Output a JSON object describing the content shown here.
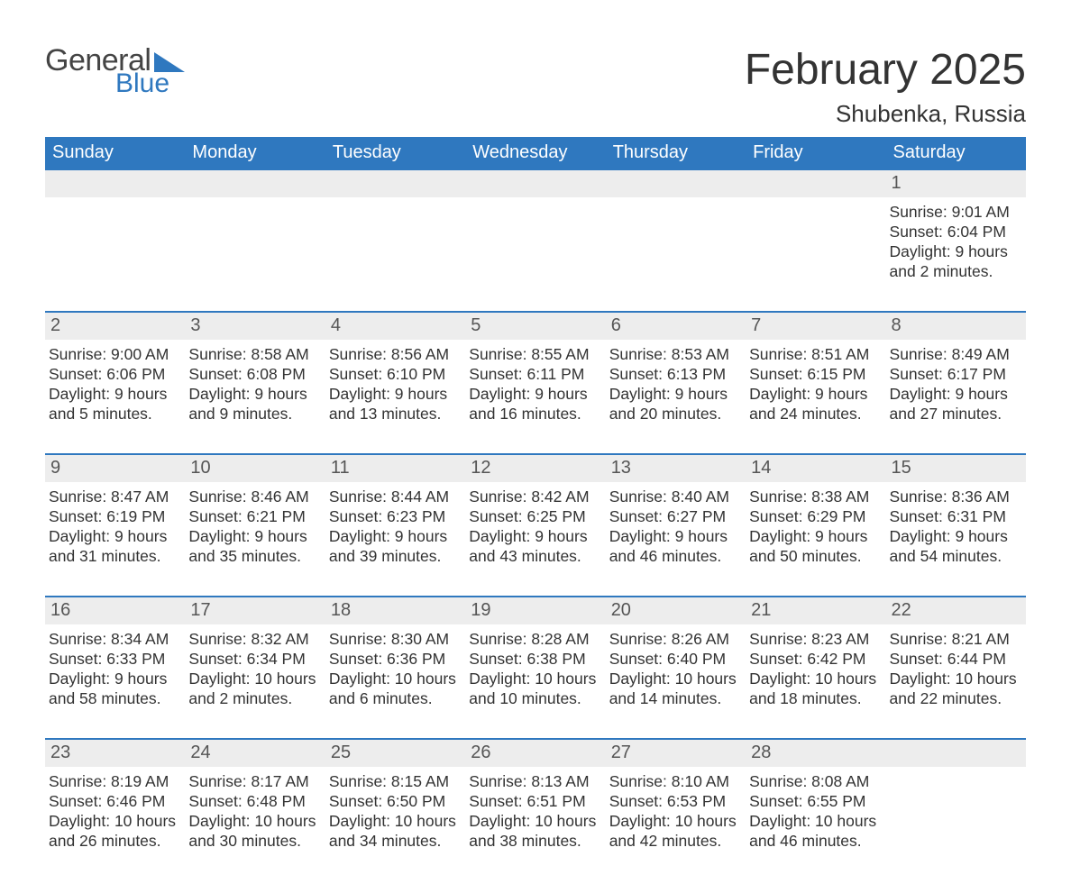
{
  "logo": {
    "text_general": "General",
    "text_blue": "Blue",
    "triangle_color": "#2f78bf"
  },
  "title": "February 2025",
  "location": "Shubenka, Russia",
  "colors": {
    "header_bg": "#2f78bf",
    "header_text": "#ffffff",
    "daynum_bg": "#ededed",
    "daynum_text": "#555555",
    "body_text": "#333333",
    "rule": "#2f78bf",
    "page_bg": "#ffffff"
  },
  "fonts": {
    "month_title_pt": 48,
    "location_pt": 26,
    "weekday_pt": 20,
    "daynum_pt": 20,
    "body_pt": 17.5
  },
  "weekdays": [
    "Sunday",
    "Monday",
    "Tuesday",
    "Wednesday",
    "Thursday",
    "Friday",
    "Saturday"
  ],
  "weeks": [
    [
      {
        "n": "",
        "sunrise": "",
        "sunset": "",
        "daylight": ""
      },
      {
        "n": "",
        "sunrise": "",
        "sunset": "",
        "daylight": ""
      },
      {
        "n": "",
        "sunrise": "",
        "sunset": "",
        "daylight": ""
      },
      {
        "n": "",
        "sunrise": "",
        "sunset": "",
        "daylight": ""
      },
      {
        "n": "",
        "sunrise": "",
        "sunset": "",
        "daylight": ""
      },
      {
        "n": "",
        "sunrise": "",
        "sunset": "",
        "daylight": ""
      },
      {
        "n": "1",
        "sunrise": "Sunrise: 9:01 AM",
        "sunset": "Sunset: 6:04 PM",
        "daylight": "Daylight: 9 hours and 2 minutes."
      }
    ],
    [
      {
        "n": "2",
        "sunrise": "Sunrise: 9:00 AM",
        "sunset": "Sunset: 6:06 PM",
        "daylight": "Daylight: 9 hours and 5 minutes."
      },
      {
        "n": "3",
        "sunrise": "Sunrise: 8:58 AM",
        "sunset": "Sunset: 6:08 PM",
        "daylight": "Daylight: 9 hours and 9 minutes."
      },
      {
        "n": "4",
        "sunrise": "Sunrise: 8:56 AM",
        "sunset": "Sunset: 6:10 PM",
        "daylight": "Daylight: 9 hours and 13 minutes."
      },
      {
        "n": "5",
        "sunrise": "Sunrise: 8:55 AM",
        "sunset": "Sunset: 6:11 PM",
        "daylight": "Daylight: 9 hours and 16 minutes."
      },
      {
        "n": "6",
        "sunrise": "Sunrise: 8:53 AM",
        "sunset": "Sunset: 6:13 PM",
        "daylight": "Daylight: 9 hours and 20 minutes."
      },
      {
        "n": "7",
        "sunrise": "Sunrise: 8:51 AM",
        "sunset": "Sunset: 6:15 PM",
        "daylight": "Daylight: 9 hours and 24 minutes."
      },
      {
        "n": "8",
        "sunrise": "Sunrise: 8:49 AM",
        "sunset": "Sunset: 6:17 PM",
        "daylight": "Daylight: 9 hours and 27 minutes."
      }
    ],
    [
      {
        "n": "9",
        "sunrise": "Sunrise: 8:47 AM",
        "sunset": "Sunset: 6:19 PM",
        "daylight": "Daylight: 9 hours and 31 minutes."
      },
      {
        "n": "10",
        "sunrise": "Sunrise: 8:46 AM",
        "sunset": "Sunset: 6:21 PM",
        "daylight": "Daylight: 9 hours and 35 minutes."
      },
      {
        "n": "11",
        "sunrise": "Sunrise: 8:44 AM",
        "sunset": "Sunset: 6:23 PM",
        "daylight": "Daylight: 9 hours and 39 minutes."
      },
      {
        "n": "12",
        "sunrise": "Sunrise: 8:42 AM",
        "sunset": "Sunset: 6:25 PM",
        "daylight": "Daylight: 9 hours and 43 minutes."
      },
      {
        "n": "13",
        "sunrise": "Sunrise: 8:40 AM",
        "sunset": "Sunset: 6:27 PM",
        "daylight": "Daylight: 9 hours and 46 minutes."
      },
      {
        "n": "14",
        "sunrise": "Sunrise: 8:38 AM",
        "sunset": "Sunset: 6:29 PM",
        "daylight": "Daylight: 9 hours and 50 minutes."
      },
      {
        "n": "15",
        "sunrise": "Sunrise: 8:36 AM",
        "sunset": "Sunset: 6:31 PM",
        "daylight": "Daylight: 9 hours and 54 minutes."
      }
    ],
    [
      {
        "n": "16",
        "sunrise": "Sunrise: 8:34 AM",
        "sunset": "Sunset: 6:33 PM",
        "daylight": "Daylight: 9 hours and 58 minutes."
      },
      {
        "n": "17",
        "sunrise": "Sunrise: 8:32 AM",
        "sunset": "Sunset: 6:34 PM",
        "daylight": "Daylight: 10 hours and 2 minutes."
      },
      {
        "n": "18",
        "sunrise": "Sunrise: 8:30 AM",
        "sunset": "Sunset: 6:36 PM",
        "daylight": "Daylight: 10 hours and 6 minutes."
      },
      {
        "n": "19",
        "sunrise": "Sunrise: 8:28 AM",
        "sunset": "Sunset: 6:38 PM",
        "daylight": "Daylight: 10 hours and 10 minutes."
      },
      {
        "n": "20",
        "sunrise": "Sunrise: 8:26 AM",
        "sunset": "Sunset: 6:40 PM",
        "daylight": "Daylight: 10 hours and 14 minutes."
      },
      {
        "n": "21",
        "sunrise": "Sunrise: 8:23 AM",
        "sunset": "Sunset: 6:42 PM",
        "daylight": "Daylight: 10 hours and 18 minutes."
      },
      {
        "n": "22",
        "sunrise": "Sunrise: 8:21 AM",
        "sunset": "Sunset: 6:44 PM",
        "daylight": "Daylight: 10 hours and 22 minutes."
      }
    ],
    [
      {
        "n": "23",
        "sunrise": "Sunrise: 8:19 AM",
        "sunset": "Sunset: 6:46 PM",
        "daylight": "Daylight: 10 hours and 26 minutes."
      },
      {
        "n": "24",
        "sunrise": "Sunrise: 8:17 AM",
        "sunset": "Sunset: 6:48 PM",
        "daylight": "Daylight: 10 hours and 30 minutes."
      },
      {
        "n": "25",
        "sunrise": "Sunrise: 8:15 AM",
        "sunset": "Sunset: 6:50 PM",
        "daylight": "Daylight: 10 hours and 34 minutes."
      },
      {
        "n": "26",
        "sunrise": "Sunrise: 8:13 AM",
        "sunset": "Sunset: 6:51 PM",
        "daylight": "Daylight: 10 hours and 38 minutes."
      },
      {
        "n": "27",
        "sunrise": "Sunrise: 8:10 AM",
        "sunset": "Sunset: 6:53 PM",
        "daylight": "Daylight: 10 hours and 42 minutes."
      },
      {
        "n": "28",
        "sunrise": "Sunrise: 8:08 AM",
        "sunset": "Sunset: 6:55 PM",
        "daylight": "Daylight: 10 hours and 46 minutes."
      },
      {
        "n": "",
        "sunrise": "",
        "sunset": "",
        "daylight": ""
      }
    ]
  ]
}
